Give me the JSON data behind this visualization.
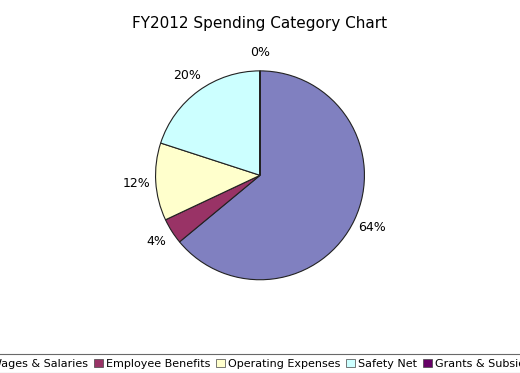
{
  "title": "FY2012 Spending Category Chart",
  "categories": [
    "Wages & Salaries",
    "Employee Benefits",
    "Operating Expenses",
    "Safety Net",
    "Grants & Subsidies"
  ],
  "values": [
    64,
    4,
    12,
    20,
    0
  ],
  "colors": [
    "#8080c0",
    "#993366",
    "#ffffcc",
    "#ccffff",
    "#660066"
  ],
  "legend_colors": [
    "#8080c0",
    "#993366",
    "#ffffcc",
    "#ccffff",
    "#660066"
  ],
  "background_color": "#ffffff",
  "title_fontsize": 11,
  "label_fontsize": 9,
  "legend_fontsize": 8,
  "startangle": 90
}
